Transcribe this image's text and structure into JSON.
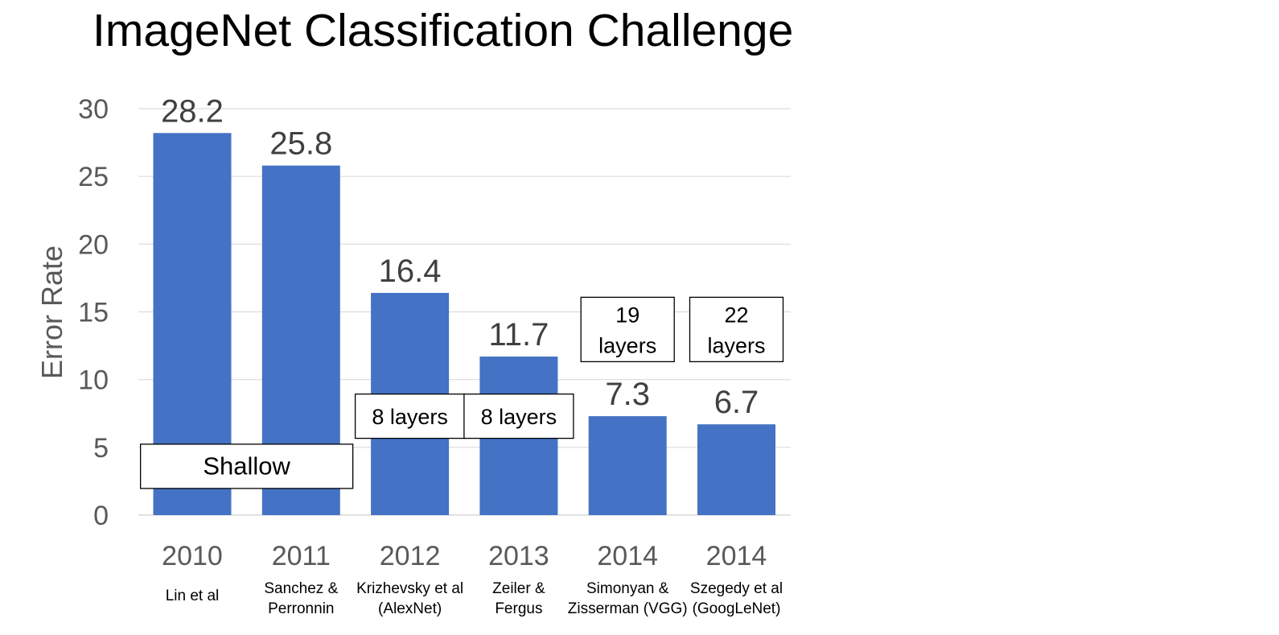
{
  "title": "ImageNet Classification Challenge",
  "chart_data": {
    "type": "bar",
    "ylabel": "Error Rate",
    "xlabel": "",
    "ylim": [
      0,
      30
    ],
    "yticks": [
      0,
      5,
      10,
      15,
      20,
      25,
      30
    ],
    "grid": true,
    "bar_color": "#4472C4",
    "categories": [
      {
        "year": "2010",
        "authors": [
          "Lin et al"
        ]
      },
      {
        "year": "2011",
        "authors": [
          "Sanchez &",
          "Perronnin"
        ]
      },
      {
        "year": "2012",
        "authors": [
          "Krizhevsky et al",
          "(AlexNet)"
        ]
      },
      {
        "year": "2013",
        "authors": [
          "Zeiler &",
          "Fergus"
        ]
      },
      {
        "year": "2014",
        "authors": [
          "Simonyan &",
          "Zisserman (VGG)"
        ]
      },
      {
        "year": "2014",
        "authors": [
          "Szegedy et al",
          "(GoogLeNet)"
        ]
      }
    ],
    "values": [
      28.2,
      25.8,
      16.4,
      11.7,
      7.3,
      6.7
    ],
    "value_labels": [
      "28.2",
      "25.8",
      "16.4",
      "11.7",
      "7.3",
      "6.7"
    ],
    "annotations": [
      {
        "bars": [
          0,
          1
        ],
        "lines": [
          "Shallow"
        ],
        "value": 3.6
      },
      {
        "bars": [
          2
        ],
        "lines": [
          "8 layers"
        ],
        "value": 7.3
      },
      {
        "bars": [
          3
        ],
        "lines": [
          "8 layers"
        ],
        "value": 7.3
      },
      {
        "bars": [
          4
        ],
        "lines": [
          "19",
          "layers"
        ],
        "value": 13.7
      },
      {
        "bars": [
          5
        ],
        "lines": [
          "22",
          "layers"
        ],
        "value": 13.7
      }
    ]
  }
}
